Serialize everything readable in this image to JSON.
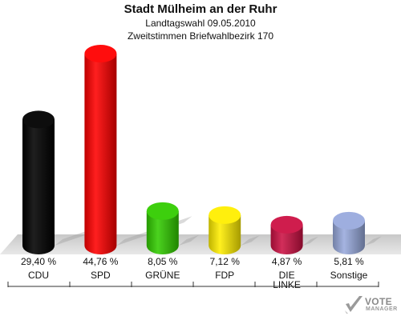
{
  "header": {
    "title": "Stadt Mülheim an der Ruhr",
    "subtitle1": "Landtagswahl 09.05.2010",
    "subtitle2": "Zweitstimmen Briefwahlbezirk 170"
  },
  "brand": {
    "name": "VOTE",
    "sub": "MANAGER"
  },
  "chart_data": {
    "type": "bar",
    "title": "Stadt Mülheim an der Ruhr",
    "subtitle": "Landtagswahl 09.05.2010 · Zweitstimmen Briefwahlbezirk 170",
    "categories": [
      "CDU",
      "SPD",
      "GRÜNE",
      "FDP",
      "DIE LINKE",
      "Sonstige"
    ],
    "category_lines": [
      [
        "CDU"
      ],
      [
        "SPD"
      ],
      [
        "GRÜNE"
      ],
      [
        "FDP"
      ],
      [
        "DIE",
        "LINKE"
      ],
      [
        "Sonstige"
      ]
    ],
    "values": [
      29.4,
      44.76,
      8.05,
      7.12,
      4.87,
      5.81
    ],
    "value_labels": [
      "29,40 %",
      "44,76 %",
      "8,05 %",
      "7,12 %",
      "4,87 %",
      "5,81 %"
    ],
    "colors": [
      "#000000",
      "#ff0000",
      "#33cc00",
      "#ffee00",
      "#cc1144",
      "#99aadd"
    ],
    "unit": "%",
    "grid": false,
    "legend": "none"
  }
}
